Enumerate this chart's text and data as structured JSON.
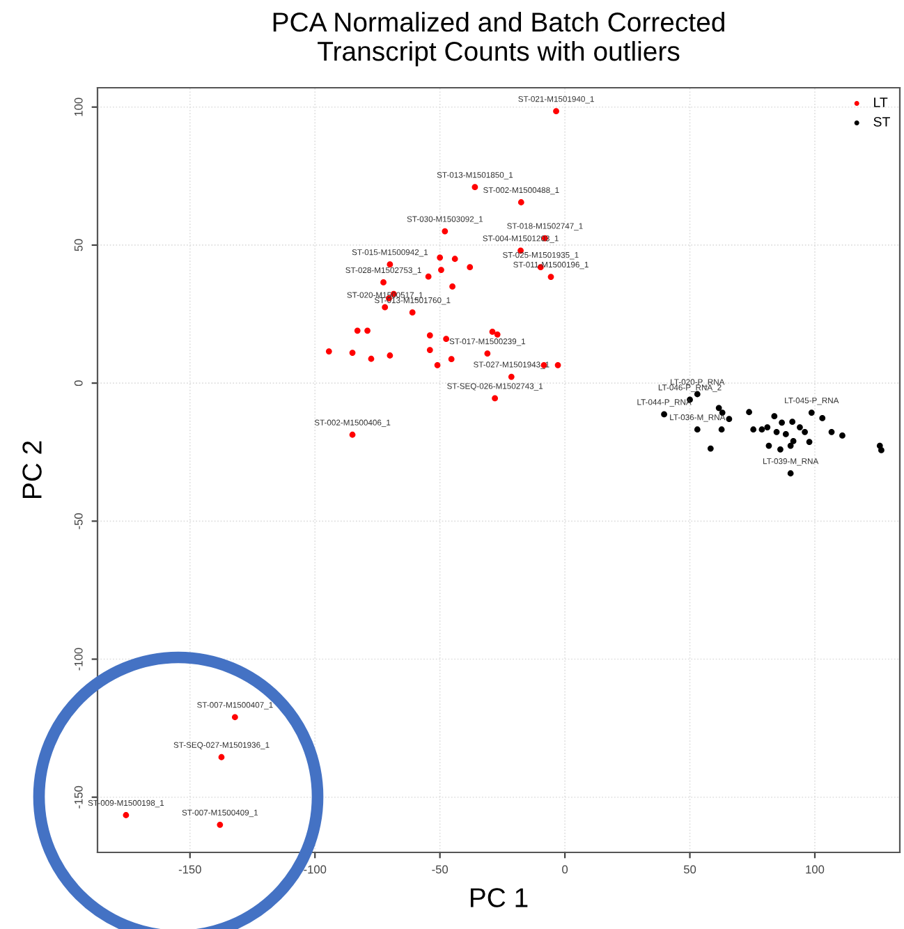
{
  "chart_data": {
    "type": "scatter",
    "title": "PCA Normalized and Batch Corrected\nTranscript Counts with outliers",
    "xlabel": "PC 1",
    "ylabel": "PC 2",
    "xlim": [
      -187,
      134
    ],
    "ylim": [
      -170,
      107
    ],
    "xticks": [
      -150,
      -100,
      -50,
      0,
      50,
      100
    ],
    "yticks": [
      -150,
      -100,
      -50,
      0,
      50,
      100
    ],
    "grid": true,
    "legend": "top right",
    "marker": "circle",
    "series": [
      {
        "name": "LT",
        "color": "#ff0000",
        "x": [
          -3.5,
          -36,
          -17.5,
          -48,
          -8,
          -17.7,
          -9.7,
          -5.6,
          -38,
          -44,
          -50,
          -54.6,
          -70,
          -49.5,
          -72.6,
          -45,
          -68.5,
          -70.4,
          -72,
          -61,
          -83,
          -79,
          -54,
          -47.5,
          -29,
          -27,
          -94.4,
          -85,
          -77.5,
          -70,
          -54,
          -51,
          -45.4,
          -31,
          -8.4,
          -2.8,
          -21.4,
          -28,
          -85,
          -132,
          -137.4,
          -175.6,
          -138
        ],
        "values": [
          98.5,
          71,
          65.5,
          55,
          52.5,
          48,
          42,
          38.5,
          42,
          45,
          45.5,
          38.6,
          43,
          41,
          36.5,
          35,
          32.3,
          30.7,
          27.5,
          25.6,
          19,
          19,
          17.3,
          16,
          18.6,
          17.6,
          11.5,
          11,
          8.8,
          10,
          12,
          6.5,
          8.7,
          10.7,
          6.5,
          6.5,
          2.3,
          -5.5,
          -18.7,
          -121,
          -135.5,
          -156.5,
          -160
        ]
      },
      {
        "name": "ST",
        "color": "#000000",
        "x": [
          50,
          39.7,
          53,
          61.6,
          63,
          65.7,
          73.7,
          83.8,
          81,
          86.8,
          91,
          98.7,
          103,
          53,
          62.7,
          78.8,
          94,
          96,
          106.7,
          111,
          58.3,
          81.6,
          86.2,
          90.3,
          91.4,
          97.8,
          126,
          126.6,
          90.3,
          75.4,
          84.7,
          88.4
        ],
        "values": [
          -6,
          -11.3,
          -4,
          -9,
          -10.7,
          -13,
          -10.5,
          -12,
          -16,
          -14.3,
          -14,
          -10.7,
          -12.7,
          -16.8,
          -16.8,
          -16.8,
          -16,
          -17.7,
          -17.7,
          -19,
          -23.7,
          -22.7,
          -24,
          -22.7,
          -21,
          -21.3,
          -22.7,
          -24.3,
          -32.7,
          -16.8,
          -17.7,
          -18.5
        ]
      }
    ],
    "annotations": [
      {
        "text": "ST-021-M1501940_1",
        "x": -3.5,
        "y": 98.5
      },
      {
        "text": "ST-013-M1501850_1",
        "x": -36,
        "y": 71
      },
      {
        "text": "ST-002-M1500488_1",
        "x": -17.5,
        "y": 65.5
      },
      {
        "text": "ST-030-M1503092_1",
        "x": -48,
        "y": 55
      },
      {
        "text": "ST-018-M1502747_1",
        "x": -8,
        "y": 52.5
      },
      {
        "text": "ST-004-M1501203_1",
        "x": -17.7,
        "y": 48
      },
      {
        "text": "ST-025-M1501935_1",
        "x": -9.7,
        "y": 42
      },
      {
        "text": "ST-011-M1500196_1",
        "x": -5.6,
        "y": 38.5
      },
      {
        "text": "ST-015-M1500942_1",
        "x": -70,
        "y": 43
      },
      {
        "text": "ST-028-M1502753_1",
        "x": -72.6,
        "y": 36.5
      },
      {
        "text": "ST-020-M1500517_1",
        "x": -72,
        "y": 27.5
      },
      {
        "text": "ST-013-M1501760_1",
        "x": -61,
        "y": 25.6
      },
      {
        "text": "ST-017-M1500239_1",
        "x": -31,
        "y": 10.7
      },
      {
        "text": "ST-027-M1501943_1",
        "x": -21.4,
        "y": 2.3
      },
      {
        "text": "ST-SEQ-026-M1502743_1",
        "x": -28,
        "y": -5.5
      },
      {
        "text": "ST-002-M1500406_1",
        "x": -85,
        "y": -18.7
      },
      {
        "text": "ST-007-M1500407_1",
        "x": -132,
        "y": -121
      },
      {
        "text": "ST-SEQ-027-M1501936_1",
        "x": -137.4,
        "y": -135.5
      },
      {
        "text": "ST-009-M1500198_1",
        "x": -175.6,
        "y": -156.5
      },
      {
        "text": "ST-007-M1500409_1",
        "x": -138,
        "y": -160
      },
      {
        "text": "LT-020-P_RNA",
        "x": 53,
        "y": -4
      },
      {
        "text": "LT-046-P_RNA_2",
        "x": 50,
        "y": -6
      },
      {
        "text": "LT-044-P_RNA",
        "x": 39.7,
        "y": -11.3
      },
      {
        "text": "LT-045-P_RNA",
        "x": 98.7,
        "y": -10.7
      },
      {
        "text": "LT-036-M_RNA",
        "x": 53,
        "y": -16.8
      },
      {
        "text": "LT-039-M_RNA",
        "x": 90.3,
        "y": -32.7
      }
    ]
  }
}
